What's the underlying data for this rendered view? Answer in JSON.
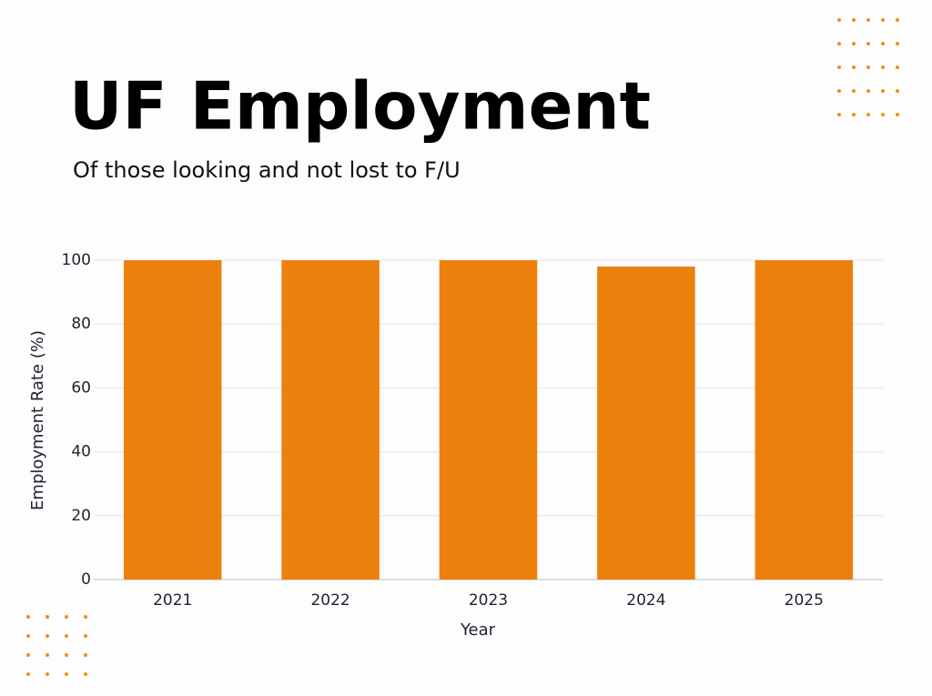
{
  "chart_data": {
    "type": "bar",
    "title": "UF Employment",
    "subtitle": "Of those looking and not lost to F/U",
    "x_label": "Year",
    "y_label": "Employment Rate (%)",
    "categories": [
      "2021",
      "2022",
      "2023",
      "2024",
      "2025"
    ],
    "values": [
      100,
      100,
      100,
      98,
      100
    ],
    "color": "#ec800c",
    "ylim": [
      0,
      100
    ],
    "yticks": [
      0,
      20,
      40,
      60,
      80,
      100
    ],
    "grid": true
  }
}
